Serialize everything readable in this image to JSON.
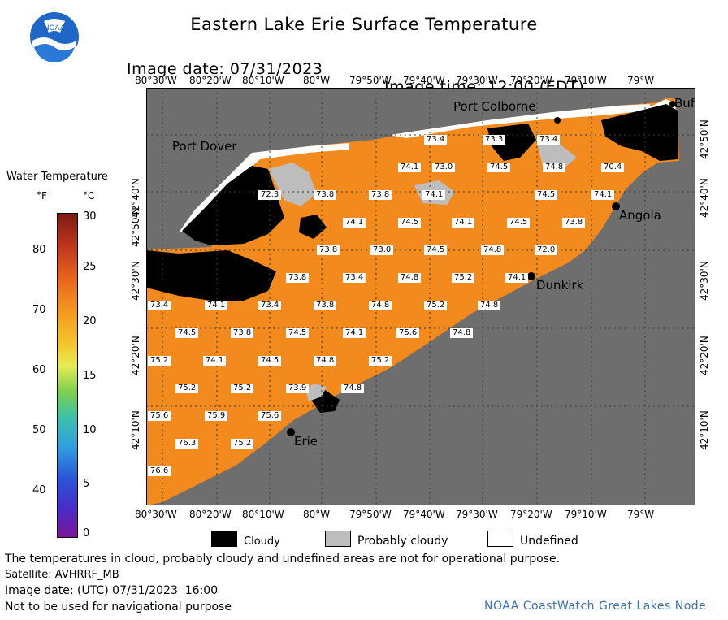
{
  "header": {
    "title": "Eastern Lake Erie Surface Temperature",
    "image_date": "Image date: 07/31/2023",
    "image_time": "Image time: 12:00 (EDT)"
  },
  "logo": {
    "text": "NOAA"
  },
  "axes": {
    "lon_ticks": [
      "80°30'W",
      "80°20'W",
      "80°10'W",
      "80°W",
      "79°50'W",
      "79°40'W",
      "79°30'W",
      "79°20'W",
      "79°10'W",
      "79°W"
    ],
    "lat_ticks": [
      "42°50'N",
      "42°40'N",
      "42°30'N",
      "42°20'N",
      "42°10'N"
    ]
  },
  "places": {
    "port_colborne": "Port Colborne",
    "port_dover": "Port Dover",
    "angola": "Angola",
    "dunkirk": "Dunkirk",
    "erie": "Erie",
    "buffalo": "Buf"
  },
  "legend": {
    "title": "Water Temperature",
    "unit_f": "°F",
    "unit_c": "°C",
    "f_labels": [
      "80",
      "70",
      "60",
      "50",
      "40"
    ],
    "c_labels": [
      "30",
      "25",
      "20",
      "15",
      "10",
      "5",
      "0"
    ]
  },
  "categories": {
    "cloudy": "Cloudy",
    "probably_cloudy": "Probably cloudy",
    "undefined": "Undefined"
  },
  "colors": {
    "land": "#6e6e6e",
    "water": "#f28a1e",
    "cloud": "#000000",
    "probably_cloudy": "#bdbdbd",
    "undefined": "#ffffff",
    "credit": "#3a6fb0"
  },
  "footer": {
    "disclaimer": "The temperatures in cloud, probably cloudy and undefined areas are not for operational purpose.",
    "satellite": "Satellite: AVHRRF_MB",
    "image_date_utc": "Image date: (UTC) 07/31/2023  16:00",
    "nav": "Not to be used for navigational purpose",
    "credit": "NOAA CoastWatch Great Lakes Node"
  },
  "temps": [
    {
      "v": "73.4"
    },
    {
      "v": "73.3"
    },
    {
      "v": "73.4"
    },
    {
      "v": "74.1"
    },
    {
      "v": "73.0"
    },
    {
      "v": "74.5"
    },
    {
      "v": "74.8"
    },
    {
      "v": "70.4"
    },
    {
      "v": "72.3"
    },
    {
      "v": "73.8"
    },
    {
      "v": "73.8"
    },
    {
      "v": "74.1"
    },
    {
      "v": "74.5"
    },
    {
      "v": "74.1"
    },
    {
      "v": "74.1"
    },
    {
      "v": "74.5"
    },
    {
      "v": "74.1"
    },
    {
      "v": "74.5"
    },
    {
      "v": "73.8"
    },
    {
      "v": "73.8"
    },
    {
      "v": "73.0"
    },
    {
      "v": "74.5"
    },
    {
      "v": "74.8"
    },
    {
      "v": "72.0"
    },
    {
      "v": "73.8"
    },
    {
      "v": "73.4"
    },
    {
      "v": "74.8"
    },
    {
      "v": "75.2"
    },
    {
      "v": "74.1"
    },
    {
      "v": "73.4"
    },
    {
      "v": "74.1"
    },
    {
      "v": "73.4"
    },
    {
      "v": "73.8"
    },
    {
      "v": "74.8"
    },
    {
      "v": "75.2"
    },
    {
      "v": "74.8"
    },
    {
      "v": "74.5"
    },
    {
      "v": "73.8"
    },
    {
      "v": "74.5"
    },
    {
      "v": "74.1"
    },
    {
      "v": "75.6"
    },
    {
      "v": "74.8"
    },
    {
      "v": "75.2"
    },
    {
      "v": "74.1"
    },
    {
      "v": "74.5"
    },
    {
      "v": "74.8"
    },
    {
      "v": "75.2"
    },
    {
      "v": "75.2"
    },
    {
      "v": "75.2"
    },
    {
      "v": "73.9"
    },
    {
      "v": "74.8"
    },
    {
      "v": "75.6"
    },
    {
      "v": "75.9"
    },
    {
      "v": "75.6"
    },
    {
      "v": "76.3"
    },
    {
      "v": "75.2"
    },
    {
      "v": "76.6"
    }
  ]
}
